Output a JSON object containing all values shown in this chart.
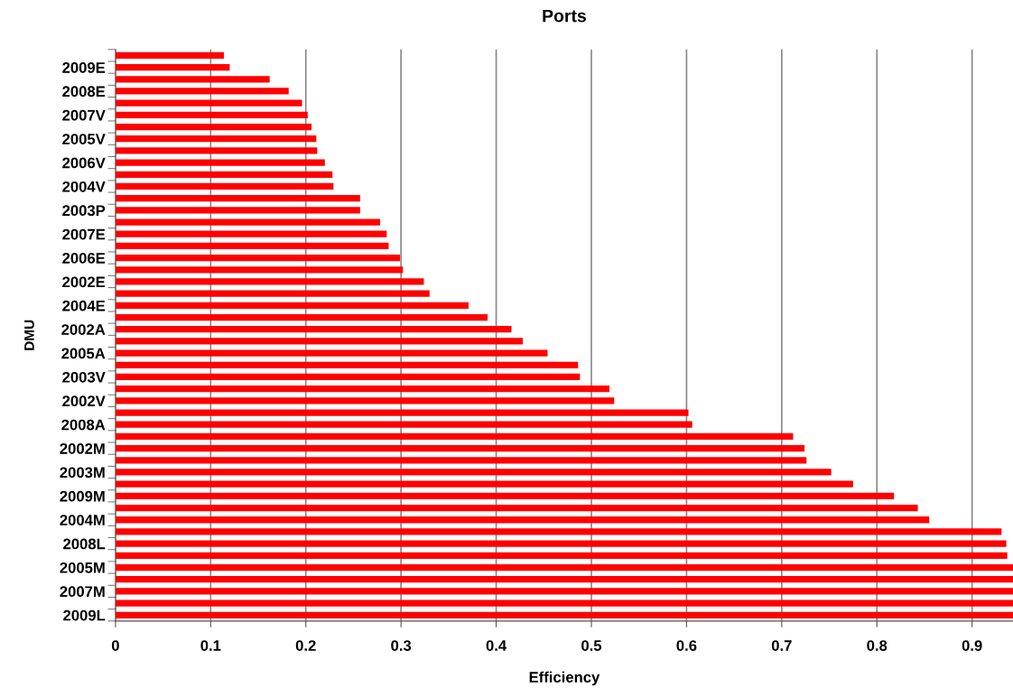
{
  "chart_data": {
    "type": "bar",
    "orientation": "horizontal",
    "title": "Ports",
    "xlabel": "Efficiency",
    "ylabel": "DMU",
    "categories": [
      null,
      "2009E",
      null,
      "2008E",
      null,
      "2007V",
      null,
      "2005V",
      null,
      "2006V",
      null,
      "2004V",
      null,
      "2003P",
      null,
      "2007E",
      null,
      "2006E",
      null,
      "2002E",
      null,
      "2004E",
      null,
      "2002A",
      null,
      "2005A",
      null,
      "2003V",
      null,
      "2002V",
      null,
      "2008A",
      null,
      "2002M",
      null,
      "2003M",
      null,
      "2009M",
      null,
      "2004M",
      null,
      "2008L",
      null,
      "2005M",
      null,
      "2007M",
      null,
      "2009L"
    ],
    "values": [
      0.114,
      0.12,
      0.162,
      0.182,
      0.196,
      0.202,
      0.206,
      0.211,
      0.212,
      0.22,
      0.228,
      0.229,
      0.257,
      0.257,
      0.278,
      0.285,
      0.287,
      0.299,
      0.302,
      0.324,
      0.33,
      0.371,
      0.391,
      0.416,
      0.428,
      0.454,
      0.486,
      0.488,
      0.519,
      0.524,
      0.602,
      0.606,
      0.712,
      0.724,
      0.726,
      0.752,
      0.775,
      0.818,
      0.843,
      0.855,
      0.931,
      0.936,
      0.937,
      0.943,
      0.943,
      0.943,
      0.943,
      0.943
    ],
    "color": "#ff0000",
    "xlim": [
      0,
      0.943
    ],
    "xticks": [
      0,
      0.1,
      0.2,
      0.3,
      0.4,
      0.5,
      0.6,
      0.7,
      0.8,
      0.9
    ],
    "grid": "x"
  }
}
